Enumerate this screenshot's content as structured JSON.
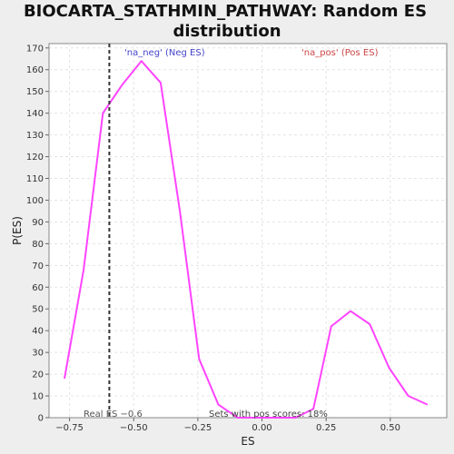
{
  "chart_data": {
    "type": "line",
    "title_lines": [
      "BIOCARTA_STATHMIN_PATHWAY: Random ES",
      "distribution"
    ],
    "xlabel": "ES",
    "ylabel": "P(ES)",
    "xlim": [
      -0.83,
      0.72
    ],
    "ylim": [
      0,
      172
    ],
    "x_ticks": [
      -0.75,
      -0.5,
      -0.25,
      0.0,
      0.25,
      0.5
    ],
    "x_tick_labels": [
      "−0.75",
      "−0.50",
      "−0.25",
      "0.00",
      "0.25",
      "0.50"
    ],
    "y_ticks": [
      0,
      10,
      20,
      30,
      40,
      50,
      60,
      70,
      80,
      90,
      100,
      110,
      120,
      130,
      140,
      150,
      160,
      170
    ],
    "y_tick_labels": [
      "0",
      "10",
      "20",
      "30",
      "40",
      "50",
      "60",
      "70",
      "80",
      "90",
      "100",
      "110",
      "120",
      "130",
      "140",
      "150",
      "160",
      "170"
    ],
    "grid": true,
    "series": [
      {
        "color": "#ff44ff",
        "x": [
          -0.77,
          -0.695,
          -0.62,
          -0.545,
          -0.47,
          -0.395,
          -0.32,
          -0.245,
          -0.17,
          -0.095,
          -0.02,
          0.055,
          0.13,
          0.2,
          0.27,
          0.345,
          0.42,
          0.495,
          0.57,
          0.645
        ],
        "y": [
          18,
          68,
          140,
          153,
          164,
          154,
          95,
          27,
          6,
          0,
          0,
          0,
          0,
          4,
          42,
          49,
          43,
          23,
          10,
          6
        ]
      }
    ],
    "real_es": {
      "value": -0.595,
      "label": "Real ES −0.6",
      "color": "#333333"
    },
    "annotations": [
      {
        "text": "'na_neg' (Neg ES)",
        "color": "#4444cc"
      },
      {
        "text": "'na_pos' (Pos ES)",
        "color": "#cc4444"
      },
      {
        "text": "Sets with pos scores: 18%",
        "color": "#444444"
      }
    ]
  }
}
